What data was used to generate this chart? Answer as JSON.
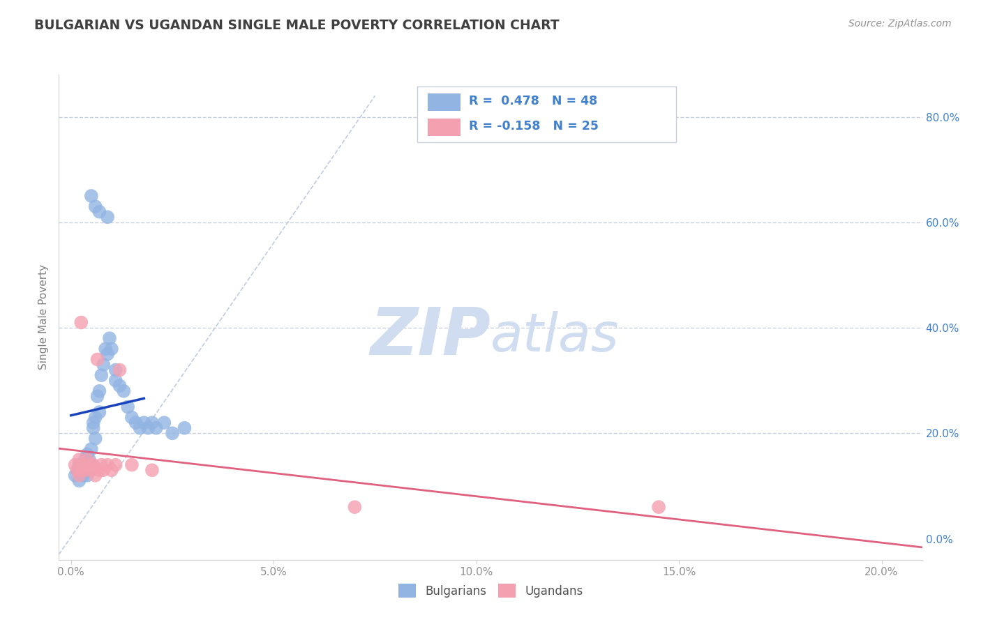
{
  "title": "BULGARIAN VS UGANDAN SINGLE MALE POVERTY CORRELATION CHART",
  "source": "Source: ZipAtlas.com",
  "xlabel_vals": [
    0.0,
    5.0,
    10.0,
    15.0,
    20.0
  ],
  "ylabel": "Single Male Poverty",
  "right_yvals": [
    0.0,
    20.0,
    40.0,
    60.0,
    80.0
  ],
  "xlim": [
    -0.3,
    21.0
  ],
  "ylim": [
    -4.0,
    88.0
  ],
  "bulgarian_R": 0.478,
  "bulgarian_N": 48,
  "ugandan_R": -0.158,
  "ugandan_N": 25,
  "bulgarian_color": "#92b4e3",
  "ugandan_color": "#f4a0b0",
  "bulgarian_line_color": "#1a44bb",
  "ugandan_line_color": "#e06080",
  "diag_line_color": "#c0cce0",
  "watermark_zip": "ZIP",
  "watermark_atlas": "atlas",
  "watermark_color": "#c8d8f0",
  "bg_color": "#ffffff",
  "grid_color": "#c8d0dc",
  "title_color": "#404040",
  "legend_text_color": "#4080cc",
  "tick_color": "#909090",
  "right_tick_color": "#4080cc",
  "bulgarians_x": [
    0.1,
    0.15,
    0.2,
    0.2,
    0.25,
    0.3,
    0.3,
    0.35,
    0.35,
    0.4,
    0.4,
    0.4,
    0.45,
    0.45,
    0.5,
    0.5,
    0.55,
    0.55,
    0.6,
    0.6,
    0.65,
    0.7,
    0.7,
    0.75,
    0.8,
    0.85,
    0.9,
    0.95,
    1.0,
    1.1,
    1.1,
    1.2,
    1.3,
    1.4,
    1.5,
    1.6,
    1.7,
    1.8,
    1.9,
    2.0,
    2.1,
    2.3,
    2.5,
    2.8,
    0.5,
    0.6,
    0.7,
    0.9
  ],
  "bulgarians_y": [
    12,
    13,
    11,
    14,
    13,
    12,
    14,
    13,
    15,
    14,
    16,
    12,
    15,
    13,
    14,
    17,
    21,
    22,
    19,
    23,
    27,
    24,
    28,
    31,
    33,
    36,
    35,
    38,
    36,
    32,
    30,
    29,
    28,
    25,
    23,
    22,
    21,
    22,
    21,
    22,
    21,
    22,
    20,
    21,
    65,
    63,
    62,
    61
  ],
  "ugandans_x": [
    0.1,
    0.15,
    0.2,
    0.2,
    0.25,
    0.3,
    0.35,
    0.4,
    0.45,
    0.5,
    0.55,
    0.6,
    0.65,
    0.7,
    0.75,
    0.8,
    0.9,
    1.0,
    1.1,
    1.2,
    1.5,
    2.0,
    7.0,
    14.5,
    0.25
  ],
  "ugandans_y": [
    14,
    13,
    15,
    12,
    13,
    14,
    13,
    15,
    14,
    13,
    14,
    12,
    34,
    13,
    14,
    13,
    14,
    13,
    14,
    32,
    14,
    13,
    6,
    6,
    41
  ]
}
